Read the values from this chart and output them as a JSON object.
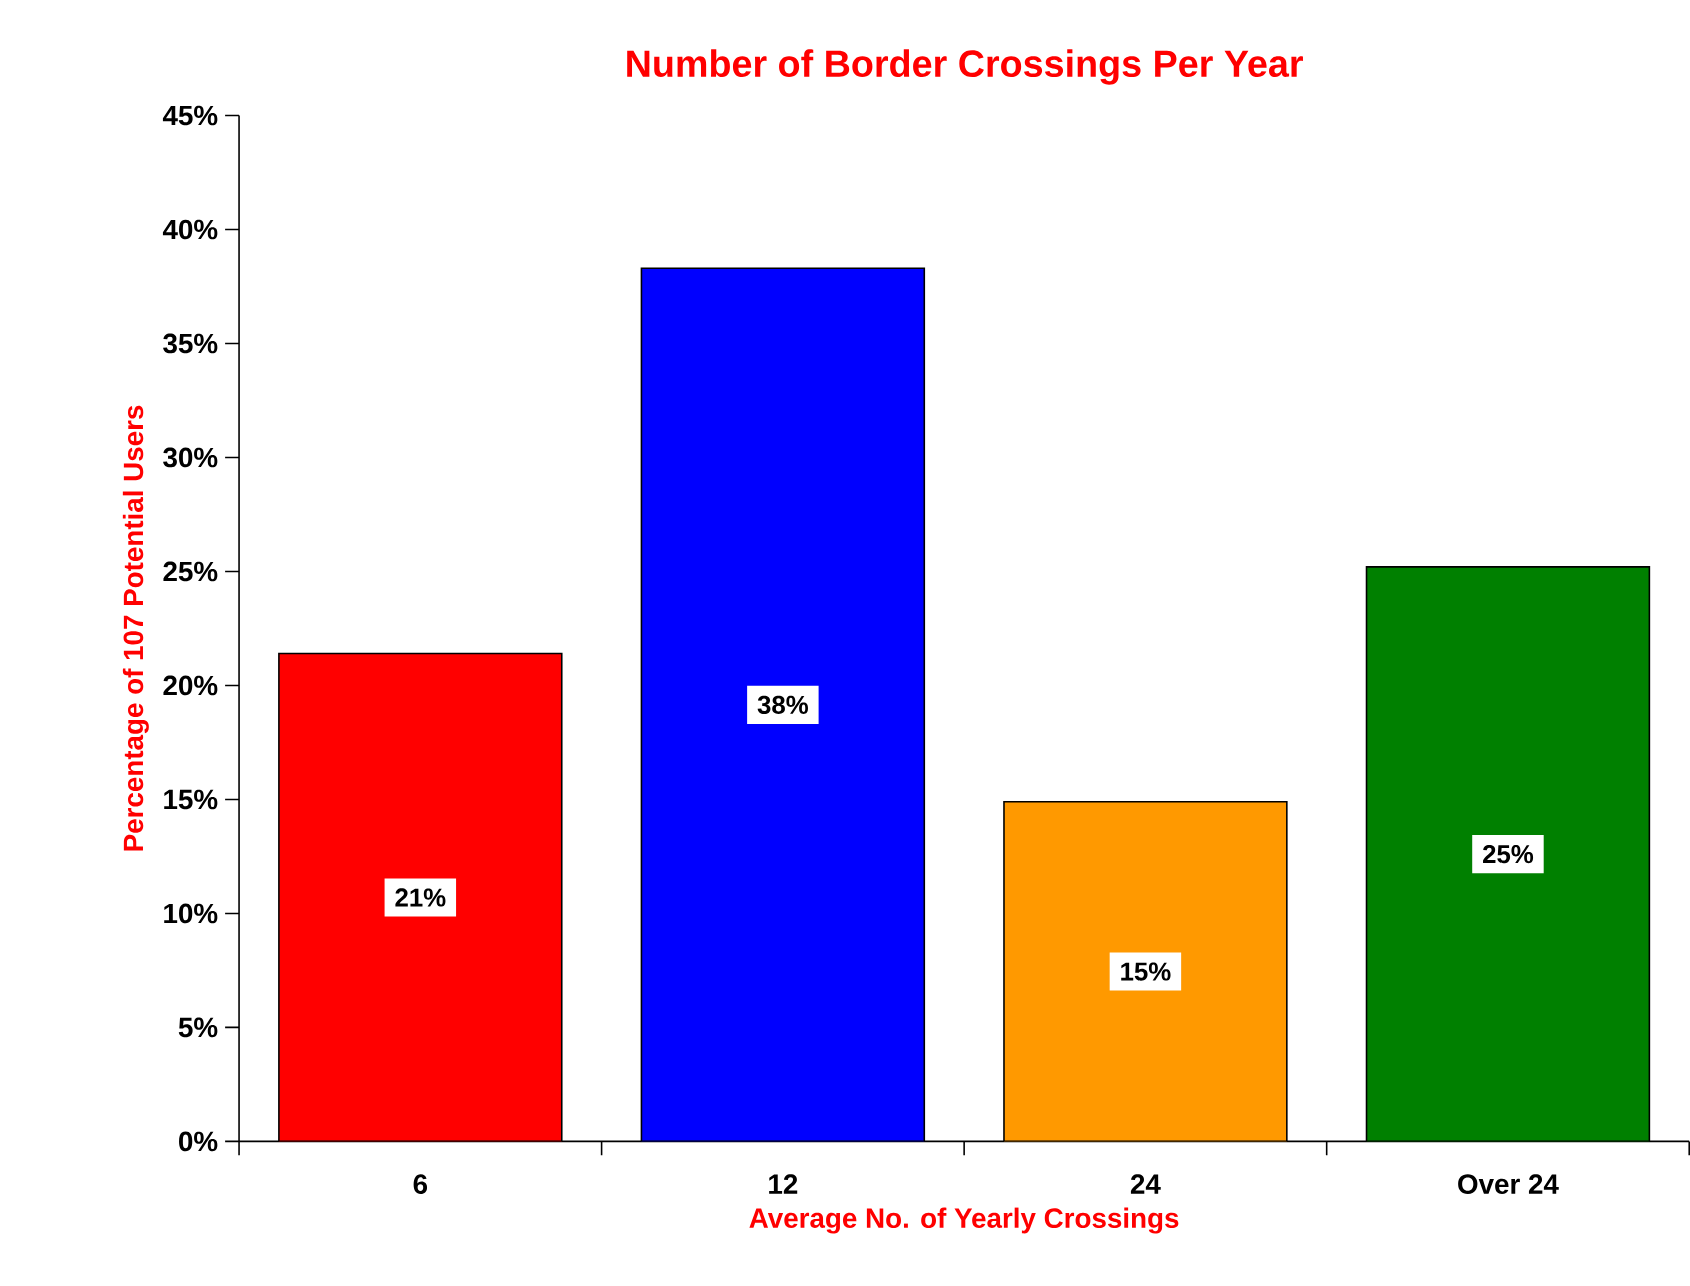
{
  "chart_data": {
    "type": "bar",
    "title": "Number of Border Crossings Per Year",
    "xlabel": "Average No. of Yearly Crossings",
    "ylabel": "Percentage of 107 Potential Users",
    "categories": [
      "6",
      "12",
      "24",
      "Over 24"
    ],
    "values": [
      21.4,
      38.3,
      14.9,
      25.2
    ],
    "colors": [
      "#ff0000",
      "#0000ff",
      "#ff9900",
      "#008000"
    ],
    "value_labels": [
      "21%",
      "38%",
      "15%",
      "25%"
    ],
    "ylim": [
      0,
      45
    ],
    "yticks": [
      {
        "value": 0,
        "label": "0%"
      },
      {
        "value": 5,
        "label": "5%"
      },
      {
        "value": 10,
        "label": "10%"
      },
      {
        "value": 15,
        "label": "15%"
      },
      {
        "value": 20,
        "label": "20%"
      },
      {
        "value": 25,
        "label": "25%"
      },
      {
        "value": 30,
        "label": "30%"
      },
      {
        "value": 35,
        "label": "35%"
      },
      {
        "value": 40,
        "label": "40%"
      },
      {
        "value": 45,
        "label": "45%"
      }
    ],
    "grid": false
  }
}
